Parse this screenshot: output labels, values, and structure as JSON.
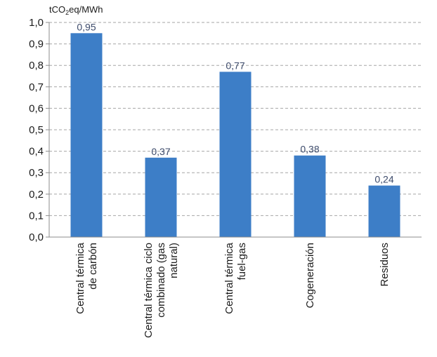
{
  "chart_data": {
    "type": "bar",
    "ylabel": "tCO₂eq/MWh",
    "ylim": [
      0,
      1.0
    ],
    "yticks": [
      "0,0",
      "0,1",
      "0,2",
      "0,3",
      "0,4",
      "0,5",
      "0,6",
      "0,7",
      "0,8",
      "0,9",
      "1,0"
    ],
    "grid": true,
    "bar_color": "#3d7ec7",
    "categories": [
      [
        "Central térmica",
        "de carbón"
      ],
      [
        "Central térmica ciclo",
        "combinado (gas",
        "natural)"
      ],
      [
        "Central térmica",
        "fuel-gas"
      ],
      [
        "Cogeneración"
      ],
      [
        "Residuos"
      ]
    ],
    "values": [
      0.95,
      0.37,
      0.77,
      0.38,
      0.24
    ],
    "value_labels": [
      "0,95",
      "0,37",
      "0,77",
      "0,38",
      "0,24"
    ]
  }
}
